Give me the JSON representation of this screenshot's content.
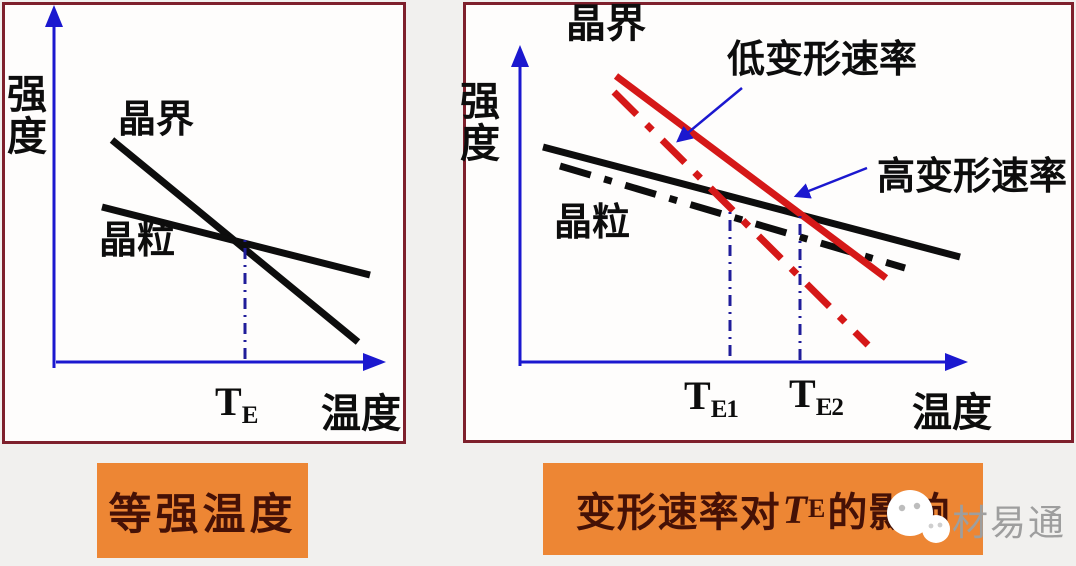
{
  "left_chart": {
    "y_axis_label": "强度",
    "x_axis_label": "温度",
    "grain_boundary_label": "晶界",
    "grain_label": "晶粒",
    "te_marker": {
      "base": "T",
      "sub": "E"
    },
    "caption": "等强温度"
  },
  "right_chart": {
    "y_axis_label": "强度",
    "x_axis_label": "温度",
    "grain_boundary_label": "晶界",
    "grain_label": "晶粒",
    "low_rate_label": "低变形速率",
    "high_rate_label": "高变形速率",
    "te1_marker": {
      "base": "T",
      "sub": "E1"
    },
    "te2_marker": {
      "base": "T",
      "sub": "E2"
    },
    "caption_prefix": "变形速率对",
    "caption_symbol": "T",
    "caption_symbol_sub": "E",
    "caption_suffix": "的影响"
  },
  "watermark": {
    "text": "材易通"
  },
  "colors": {
    "axis_blue": "#1b18cf",
    "guide_navy": "#201d9a",
    "line_black": "#0d0d0d",
    "line_red": "#d51818",
    "panel_border": "#7e202c",
    "caption_bg": "#ed8634",
    "caption_text": "#451106",
    "watermark_gray": "#9e9e9e"
  }
}
